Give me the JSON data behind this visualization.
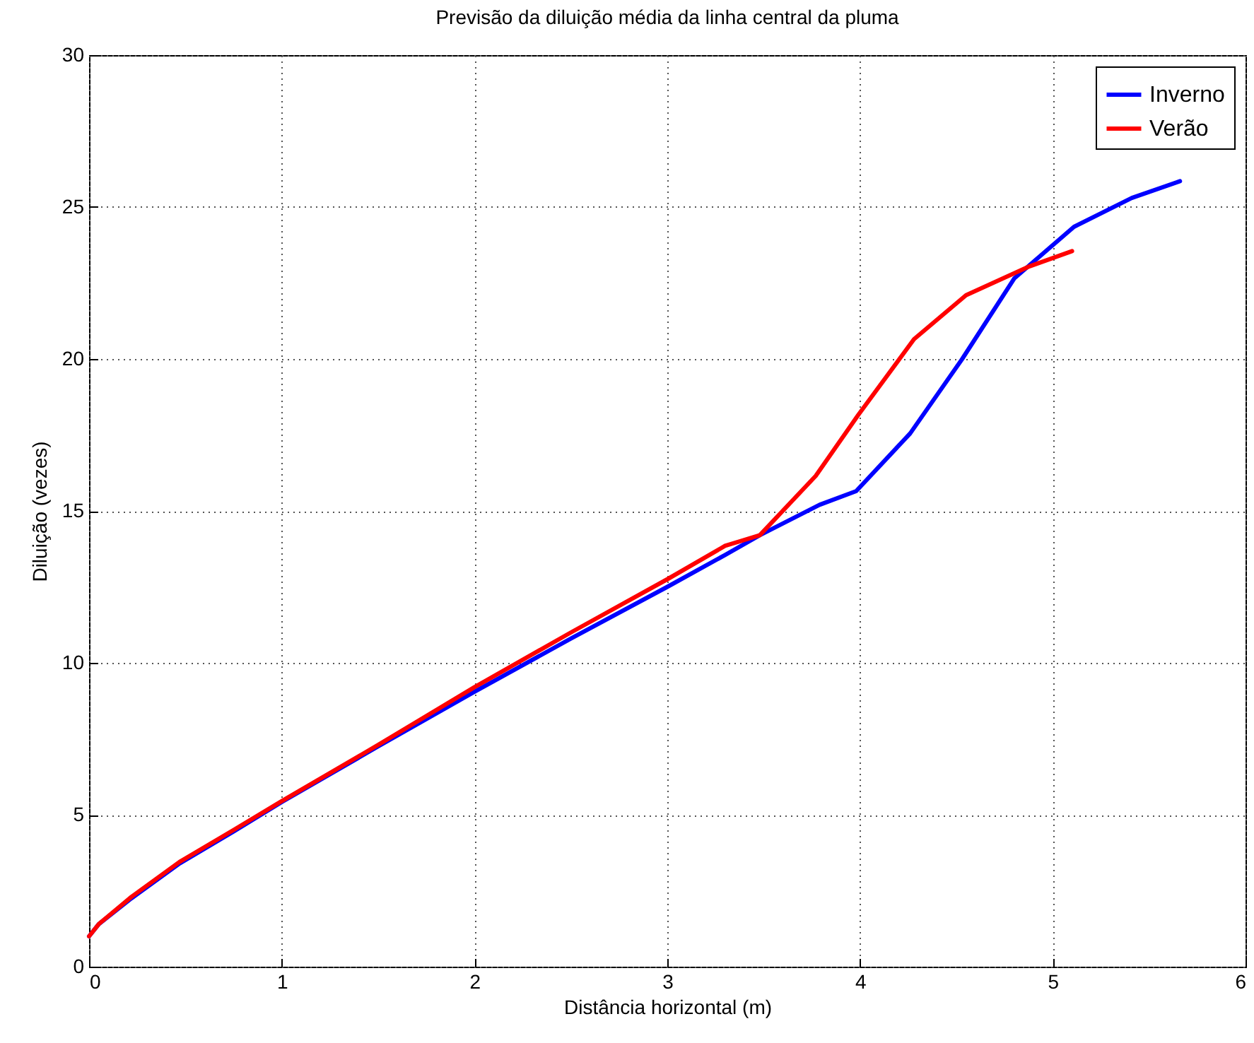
{
  "chart_data": {
    "type": "line",
    "title": "Previsão da diluição média da linha central da pluma",
    "xlabel": "Distância horizontal (m)",
    "ylabel": "Diluição (vezes)",
    "xlim": [
      0,
      6
    ],
    "xticks": [
      0,
      1,
      2,
      3,
      4,
      5,
      6
    ],
    "ylim": [
      0,
      30
    ],
    "yticks": [
      0,
      5,
      10,
      15,
      20,
      25,
      30
    ],
    "grid": true,
    "legend": "top right",
    "line_style": "solid",
    "marker": "none",
    "series": [
      {
        "name": "Inverno",
        "color": "#0000ff",
        "x": [
          0,
          0.05,
          0.22,
          0.47,
          0.75,
          1.0,
          1.5,
          2.0,
          2.5,
          3.0,
          3.3,
          3.48,
          3.79,
          3.98,
          4.26,
          4.53,
          4.8,
          5.11,
          5.41,
          5.66
        ],
        "values": [
          1.0,
          1.4,
          2.25,
          3.4,
          4.45,
          5.42,
          7.25,
          9.05,
          10.8,
          12.5,
          13.55,
          14.2,
          15.2,
          15.65,
          17.55,
          20.0,
          22.65,
          24.35,
          25.3,
          25.85
        ]
      },
      {
        "name": "Verão",
        "color": "#ff0000",
        "x": [
          0,
          0.05,
          0.22,
          0.47,
          0.75,
          1.0,
          1.5,
          2.0,
          2.5,
          3.0,
          3.3,
          3.48,
          3.77,
          3.99,
          4.28,
          4.55,
          4.88,
          5.1
        ],
        "values": [
          1.0,
          1.4,
          2.3,
          3.45,
          4.5,
          5.45,
          7.3,
          9.2,
          11.0,
          12.75,
          13.85,
          14.2,
          16.15,
          18.15,
          20.65,
          22.1,
          23.05,
          23.55
        ]
      }
    ]
  }
}
